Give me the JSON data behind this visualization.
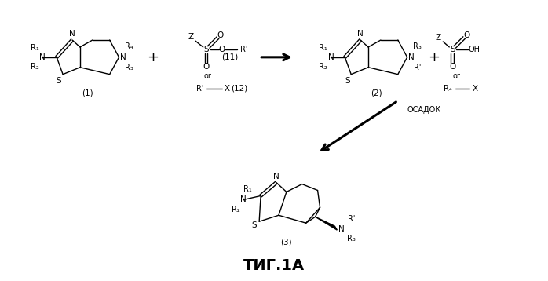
{
  "background_color": "#ffffff",
  "figsize": [
    6.98,
    3.58
  ],
  "dpi": 100,
  "arrow_label": "ОСАДОК",
  "bottom_title": "ΤИГ.1А",
  "compound_labels": [
    "(1)",
    "(2)",
    "(3)",
    "(11)",
    "(12)"
  ]
}
